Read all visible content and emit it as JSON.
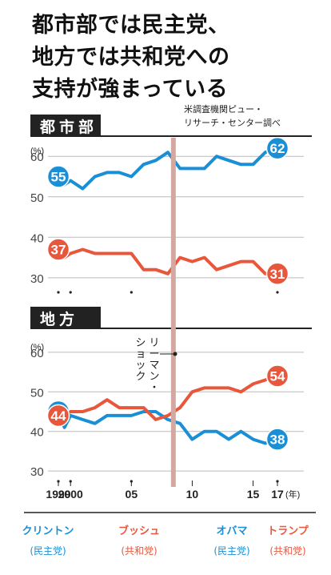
{
  "headline": [
    "都市部では民主党、",
    "地方では共和党への",
    "支持が強まっている"
  ],
  "source": [
    "米調査機関ピュー・",
    "リサーチ・センター調べ"
  ],
  "sections": {
    "urban": "都市部",
    "rural": "地方"
  },
  "unit": "(%)",
  "year_unit": "(年)",
  "event_label": "リーマン・ショック",
  "x_tick_labels": [
    {
      "x": 1999,
      "label": "1999"
    },
    {
      "x": 2000,
      "label": "2000"
    },
    {
      "x": 2005,
      "label": "05"
    },
    {
      "x": 2010,
      "label": "10"
    },
    {
      "x": 2015,
      "label": "15"
    },
    {
      "x": 2017,
      "label": "17"
    }
  ],
  "presidents": [
    {
      "name": "クリントン",
      "party": "(民主党)",
      "color": "#1a8fd6"
    },
    {
      "name": "ブッシュ",
      "party": "(共和党)",
      "color": "#e8573c"
    },
    {
      "name": "オバマ",
      "party": "(民主党)",
      "color": "#1a8fd6"
    },
    {
      "name": "トランプ",
      "party": "(共和党)",
      "color": "#e8573c"
    }
  ],
  "colors": {
    "democrat": "#1a8fd6",
    "republican": "#e8573c",
    "event_band": "#d3a8a0"
  },
  "chart_data": [
    {
      "type": "line",
      "title": "都市部",
      "ylabel": "(%)",
      "ylim": [
        27,
        64
      ],
      "yticks": [
        30,
        40,
        50,
        60
      ],
      "x": [
        1999,
        1999.5,
        2000,
        2001,
        2002,
        2003,
        2004,
        2005,
        2006,
        2007,
        2008,
        2009,
        2010,
        2011,
        2012,
        2013,
        2014,
        2015,
        2016,
        2017
      ],
      "series": [
        {
          "party": "democrat",
          "values": [
            55,
            53,
            54,
            52,
            55,
            56,
            56,
            55,
            58,
            59,
            61,
            57,
            57,
            57,
            60,
            59,
            58,
            58,
            61,
            62
          ],
          "start_label": "55",
          "end_label": "62"
        },
        {
          "party": "republican",
          "values": [
            37,
            35,
            36,
            37,
            36,
            36,
            36,
            36,
            32,
            32,
            31,
            35,
            34,
            35,
            32,
            33,
            34,
            34,
            31,
            31
          ],
          "start_label": "37",
          "end_label": "31"
        }
      ]
    },
    {
      "type": "line",
      "title": "地方",
      "ylabel": "(%)",
      "ylim": [
        28,
        62
      ],
      "yticks": [
        30,
        40,
        50,
        60
      ],
      "x": [
        1999,
        1999.5,
        2000,
        2001,
        2002,
        2003,
        2004,
        2005,
        2006,
        2007,
        2008,
        2009,
        2010,
        2011,
        2012,
        2013,
        2014,
        2015,
        2016,
        2017
      ],
      "series": [
        {
          "party": "democrat",
          "values": [
            45,
            41,
            44,
            43,
            42,
            44,
            44,
            44,
            45,
            45,
            43,
            42,
            38,
            40,
            40,
            38,
            40,
            38,
            37,
            38
          ],
          "start_label": "45",
          "end_label": "38"
        },
        {
          "party": "republican",
          "values": [
            44,
            44,
            45,
            45,
            46,
            48,
            46,
            46,
            46,
            43,
            44,
            46,
            50,
            51,
            51,
            51,
            50,
            52,
            53,
            54
          ],
          "start_label": "44",
          "end_label": "54"
        }
      ]
    }
  ]
}
